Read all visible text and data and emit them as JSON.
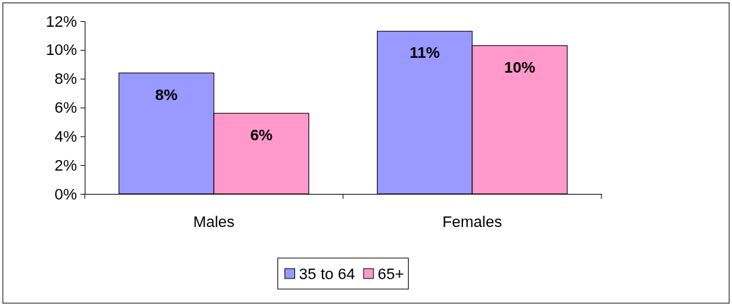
{
  "chart_data": {
    "type": "bar",
    "categories": [
      "Males",
      "Females"
    ],
    "series": [
      {
        "name": "35 to 64",
        "color": "#9999ff",
        "values": [
          8.4,
          11.3
        ],
        "value_labels": [
          "8%",
          "11%"
        ]
      },
      {
        "name": "65+",
        "color": "#ff99cc",
        "values": [
          5.6,
          10.3
        ],
        "value_labels": [
          "6%",
          "10%"
        ]
      }
    ],
    "ylim": [
      0,
      12
    ],
    "yticks": [
      {
        "value": 0,
        "label": "0%"
      },
      {
        "value": 2,
        "label": "2%"
      },
      {
        "value": 4,
        "label": "4%"
      },
      {
        "value": 6,
        "label": "6%"
      },
      {
        "value": 8,
        "label": "8%"
      },
      {
        "value": 10,
        "label": "10%"
      },
      {
        "value": 12,
        "label": "12%"
      }
    ],
    "grid": false,
    "legend": "bottom"
  }
}
